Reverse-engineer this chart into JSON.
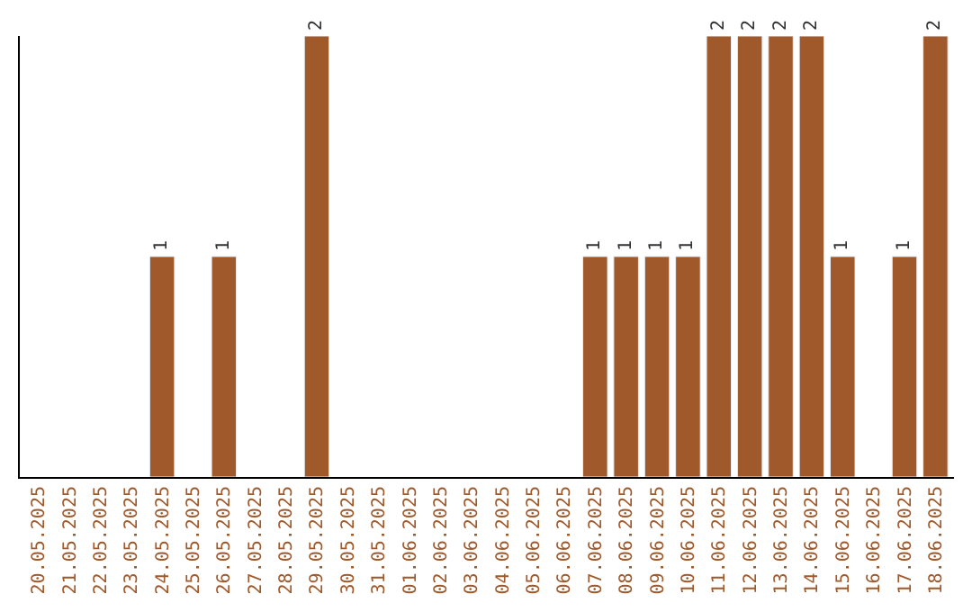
{
  "chart_data": {
    "type": "bar",
    "categories": [
      "20.05.2025",
      "21.05.2025",
      "22.05.2025",
      "23.05.2025",
      "24.05.2025",
      "25.05.2025",
      "26.05.2025",
      "27.05.2025",
      "28.05.2025",
      "29.05.2025",
      "30.05.2025",
      "31.05.2025",
      "01.06.2025",
      "02.06.2025",
      "03.06.2025",
      "04.06.2025",
      "05.06.2025",
      "06.06.2025",
      "07.06.2025",
      "08.06.2025",
      "09.06.2025",
      "10.06.2025",
      "11.06.2025",
      "12.06.2025",
      "13.06.2025",
      "14.06.2025",
      "15.06.2025",
      "16.06.2025",
      "17.06.2025",
      "18.06.2025"
    ],
    "values": [
      null,
      null,
      null,
      null,
      1,
      null,
      1,
      null,
      null,
      2,
      null,
      null,
      null,
      null,
      null,
      null,
      null,
      null,
      1,
      1,
      1,
      1,
      2,
      2,
      2,
      2,
      1,
      null,
      1,
      2
    ],
    "value_labels": [
      null,
      null,
      null,
      null,
      "1",
      null,
      "1",
      null,
      null,
      "2",
      null,
      null,
      null,
      null,
      null,
      null,
      null,
      null,
      "1",
      "1",
      "1",
      "1",
      "2",
      "2",
      "2",
      "2",
      "1",
      null,
      "1",
      "2"
    ],
    "color": "#a0592a",
    "ylim": [
      0,
      2
    ],
    "tick_labels": "x"
  }
}
